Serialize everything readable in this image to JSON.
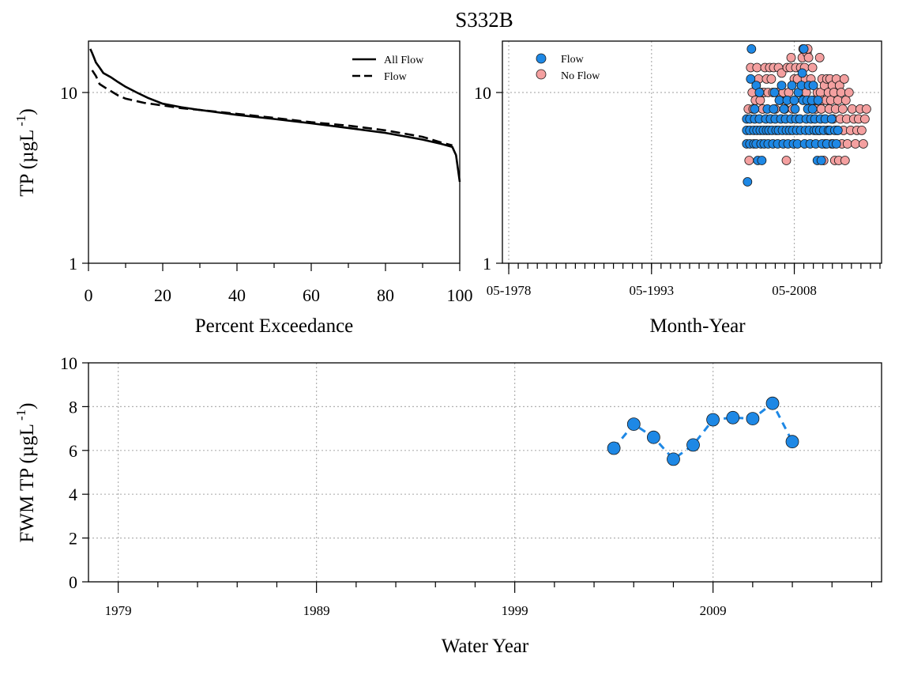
{
  "figure_title": "S332B",
  "colors": {
    "flow": "#1e88e5",
    "no_flow": "#f4a0a0",
    "line": "#000000",
    "fwm": "#1e88e5"
  },
  "chart_data": [
    {
      "id": "exceedance",
      "type": "line",
      "xlabel": "Percent Exceedance",
      "ylabel": "TP (µgL⁻¹)",
      "ylabel_main": "TP (µgL",
      "ylabel_exp": "-1",
      "xlim": [
        0,
        100
      ],
      "ylim": [
        1,
        20
      ],
      "yscale": "log",
      "x_ticks": [
        "0",
        "20",
        "40",
        "60",
        "80",
        "100"
      ],
      "y_ticks": [
        "1",
        "10"
      ],
      "grid": true,
      "legend_position": "top-right",
      "series": [
        {
          "name": "All Flow",
          "style": "solid",
          "x": [
            0.5,
            1,
            1.5,
            2,
            3,
            4,
            6,
            8,
            10,
            13,
            16,
            20,
            25,
            30,
            40,
            50,
            60,
            70,
            80,
            90,
            95,
            98,
            99,
            100
          ],
          "y": [
            18,
            17,
            16,
            15,
            14,
            13,
            12.3,
            11.5,
            10.8,
            10,
            9.3,
            8.6,
            8.2,
            7.9,
            7.4,
            7.0,
            6.6,
            6.2,
            5.8,
            5.3,
            5.0,
            4.8,
            4.3,
            3.0
          ]
        },
        {
          "name": "Flow",
          "style": "dashed",
          "x": [
            1,
            2,
            3,
            5,
            8,
            10,
            15,
            20,
            25,
            30,
            40,
            50,
            60,
            70,
            80,
            90,
            95,
            98
          ],
          "y": [
            13.5,
            12.5,
            11.2,
            10.5,
            9.6,
            9.2,
            8.7,
            8.4,
            8.1,
            7.9,
            7.5,
            7.1,
            6.7,
            6.4,
            6.0,
            5.5,
            5.1,
            4.9
          ]
        }
      ]
    },
    {
      "id": "monthly",
      "type": "scatter",
      "xlabel": "Month-Year",
      "ylabel": "",
      "ylim": [
        1,
        20
      ],
      "yscale": "log",
      "xlim": [
        "1977-09",
        "2017-07"
      ],
      "x_ticks": [
        "05-1978",
        "05-1993",
        "05-2008"
      ],
      "y_ticks": [
        "1",
        "10"
      ],
      "grid": true,
      "legend_position": "top-left",
      "series": [
        {
          "name": "Flow",
          "points": [
            [
              "2003-05",
              5
            ],
            [
              "2003-05",
              6
            ],
            [
              "2003-05",
              7
            ],
            [
              "2003-06",
              3
            ],
            [
              "2003-09",
              5
            ],
            [
              "2003-09",
              6
            ],
            [
              "2003-09",
              7
            ],
            [
              "2003-10",
              12
            ],
            [
              "2003-11",
              18
            ],
            [
              "2004-02",
              5
            ],
            [
              "2004-02",
              6
            ],
            [
              "2004-03",
              7
            ],
            [
              "2004-03",
              8
            ],
            [
              "2004-05",
              11
            ],
            [
              "2004-05",
              5
            ],
            [
              "2004-06",
              6
            ],
            [
              "2004-07",
              4
            ],
            [
              "2004-09",
              7
            ],
            [
              "2004-09",
              10
            ],
            [
              "2004-10",
              6
            ],
            [
              "2004-11",
              5
            ],
            [
              "2004-12",
              4
            ],
            [
              "2005-02",
              6
            ],
            [
              "2005-03",
              5
            ],
            [
              "2005-05",
              7
            ],
            [
              "2005-06",
              6
            ],
            [
              "2005-07",
              8
            ],
            [
              "2005-08",
              5
            ],
            [
              "2005-09",
              6
            ],
            [
              "2005-11",
              7
            ],
            [
              "2006-01",
              6
            ],
            [
              "2006-02",
              5
            ],
            [
              "2006-03",
              8
            ],
            [
              "2006-04",
              10
            ],
            [
              "2006-05",
              7
            ],
            [
              "2006-06",
              6
            ],
            [
              "2006-08",
              5
            ],
            [
              "2006-09",
              6
            ],
            [
              "2006-10",
              9
            ],
            [
              "2006-12",
              7
            ],
            [
              "2007-01",
              11
            ],
            [
              "2007-02",
              6
            ],
            [
              "2007-03",
              5
            ],
            [
              "2007-04",
              8
            ],
            [
              "2007-06",
              7
            ],
            [
              "2007-07",
              6
            ],
            [
              "2007-08",
              9
            ],
            [
              "2007-09",
              5
            ],
            [
              "2007-11",
              6
            ],
            [
              "2008-01",
              7
            ],
            [
              "2008-02",
              11
            ],
            [
              "2008-03",
              6
            ],
            [
              "2008-04",
              5
            ],
            [
              "2008-05",
              9
            ],
            [
              "2008-06",
              8
            ],
            [
              "2008-07",
              7
            ],
            [
              "2008-08",
              6
            ],
            [
              "2008-09",
              5
            ],
            [
              "2008-10",
              10
            ],
            [
              "2008-12",
              7
            ],
            [
              "2009-01",
              6
            ],
            [
              "2009-02",
              11
            ],
            [
              "2009-03",
              13
            ],
            [
              "2009-04",
              9
            ],
            [
              "2009-05",
              18
            ],
            [
              "2009-06",
              5
            ],
            [
              "2009-07",
              6
            ],
            [
              "2009-08",
              7
            ],
            [
              "2009-09",
              9
            ],
            [
              "2009-10",
              8
            ],
            [
              "2009-11",
              11
            ],
            [
              "2009-12",
              6
            ],
            [
              "2010-01",
              5
            ],
            [
              "2010-02",
              7
            ],
            [
              "2010-03",
              9
            ],
            [
              "2010-04",
              8
            ],
            [
              "2010-05",
              11
            ],
            [
              "2010-06",
              6
            ],
            [
              "2010-07",
              7
            ],
            [
              "2010-08",
              5
            ],
            [
              "2010-09",
              6
            ],
            [
              "2010-10",
              4
            ],
            [
              "2010-11",
              9
            ],
            [
              "2011-01",
              6
            ],
            [
              "2011-02",
              7
            ],
            [
              "2011-03",
              4
            ],
            [
              "2011-04",
              5
            ],
            [
              "2011-06",
              6
            ],
            [
              "2011-08",
              7
            ],
            [
              "2011-10",
              5
            ],
            [
              "2011-12",
              6
            ],
            [
              "2012-02",
              6
            ],
            [
              "2012-04",
              7
            ],
            [
              "2012-06",
              5
            ],
            [
              "2012-08",
              6
            ],
            [
              "2012-10",
              5
            ],
            [
              "2012-12",
              6
            ]
          ]
        },
        {
          "name": "No Flow",
          "points": [
            [
              "2003-07",
              8
            ],
            [
              "2003-08",
              4
            ],
            [
              "2003-10",
              14
            ],
            [
              "2003-12",
              10
            ],
            [
              "2004-01",
              8
            ],
            [
              "2004-04",
              9
            ],
            [
              "2004-06",
              14
            ],
            [
              "2004-08",
              12
            ],
            [
              "2004-10",
              9
            ],
            [
              "2004-12",
              10
            ],
            [
              "2005-01",
              8
            ],
            [
              "2005-03",
              10
            ],
            [
              "2005-04",
              14
            ],
            [
              "2005-06",
              12
            ],
            [
              "2005-08",
              10
            ],
            [
              "2005-10",
              14
            ],
            [
              "2005-12",
              12
            ],
            [
              "2006-02",
              10
            ],
            [
              "2006-03",
              14
            ],
            [
              "2006-05",
              8
            ],
            [
              "2006-07",
              10
            ],
            [
              "2006-09",
              14
            ],
            [
              "2006-11",
              9
            ],
            [
              "2007-01",
              13
            ],
            [
              "2007-03",
              10
            ],
            [
              "2007-05",
              8
            ],
            [
              "2007-07",
              4
            ],
            [
              "2007-08",
              14
            ],
            [
              "2007-10",
              10
            ],
            [
              "2007-12",
              14
            ],
            [
              "2008-01",
              16
            ],
            [
              "2008-03",
              8
            ],
            [
              "2008-05",
              12
            ],
            [
              "2008-07",
              14
            ],
            [
              "2008-09",
              12
            ],
            [
              "2008-11",
              10
            ],
            [
              "2009-01",
              14
            ],
            [
              "2009-03",
              16
            ],
            [
              "2009-04",
              18
            ],
            [
              "2009-06",
              14
            ],
            [
              "2009-07",
              12
            ],
            [
              "2009-08",
              10
            ],
            [
              "2009-09",
              17
            ],
            [
              "2009-10",
              18
            ],
            [
              "2009-11",
              16
            ],
            [
              "2010-02",
              12
            ],
            [
              "2010-04",
              14
            ],
            [
              "2010-06",
              9
            ],
            [
              "2010-08",
              8
            ],
            [
              "2010-10",
              10
            ],
            [
              "2010-12",
              6
            ],
            [
              "2011-01",
              16
            ],
            [
              "2011-02",
              10
            ],
            [
              "2011-03",
              8
            ],
            [
              "2011-04",
              12
            ],
            [
              "2011-05",
              9
            ],
            [
              "2011-06",
              4
            ],
            [
              "2011-07",
              11
            ],
            [
              "2011-08",
              5
            ],
            [
              "2011-09",
              9
            ],
            [
              "2011-10",
              12
            ],
            [
              "2011-11",
              6
            ],
            [
              "2011-12",
              10
            ],
            [
              "2012-01",
              8
            ],
            [
              "2012-02",
              12
            ],
            [
              "2012-03",
              9
            ],
            [
              "2012-04",
              5
            ],
            [
              "2012-05",
              11
            ],
            [
              "2012-06",
              7
            ],
            [
              "2012-07",
              10
            ],
            [
              "2012-08",
              4
            ],
            [
              "2012-09",
              8
            ],
            [
              "2012-10",
              12
            ],
            [
              "2012-11",
              6
            ],
            [
              "2012-12",
              9
            ],
            [
              "2013-01",
              4
            ],
            [
              "2013-02",
              11
            ],
            [
              "2013-03",
              7
            ],
            [
              "2013-04",
              10
            ],
            [
              "2013-05",
              5
            ],
            [
              "2013-06",
              8
            ],
            [
              "2013-07",
              6
            ],
            [
              "2013-08",
              12
            ],
            [
              "2013-09",
              4
            ],
            [
              "2013-10",
              9
            ],
            [
              "2013-11",
              7
            ],
            [
              "2013-12",
              5
            ],
            [
              "2014-02",
              10
            ],
            [
              "2014-04",
              6
            ],
            [
              "2014-06",
              8
            ],
            [
              "2014-08",
              7
            ],
            [
              "2014-10",
              5
            ],
            [
              "2014-12",
              6
            ],
            [
              "2015-02",
              7
            ],
            [
              "2015-04",
              8
            ],
            [
              "2015-06",
              6
            ],
            [
              "2015-08",
              5
            ],
            [
              "2015-10",
              7
            ],
            [
              "2015-12",
              8
            ]
          ]
        }
      ]
    },
    {
      "id": "fwm",
      "type": "line",
      "xlabel": "Water Year",
      "ylabel": "FWM TP (µgL⁻¹)",
      "ylabel_main": "FWM TP (µgL",
      "ylabel_exp": "-1",
      "xlim": [
        1977.5,
        2017.5
      ],
      "ylim": [
        0,
        10
      ],
      "x_ticks": [
        "1979",
        "1989",
        "1999",
        "2009"
      ],
      "y_ticks": [
        "0",
        "2",
        "4",
        "6",
        "8",
        "10"
      ],
      "grid": true,
      "series": [
        {
          "name": "FWM TP",
          "x": [
            2004,
            2005,
            2006,
            2007,
            2008,
            2009,
            2010,
            2011,
            2012,
            2013
          ],
          "y": [
            6.1,
            7.2,
            6.6,
            5.6,
            6.25,
            7.4,
            7.5,
            7.45,
            8.15,
            6.4
          ]
        }
      ]
    }
  ]
}
